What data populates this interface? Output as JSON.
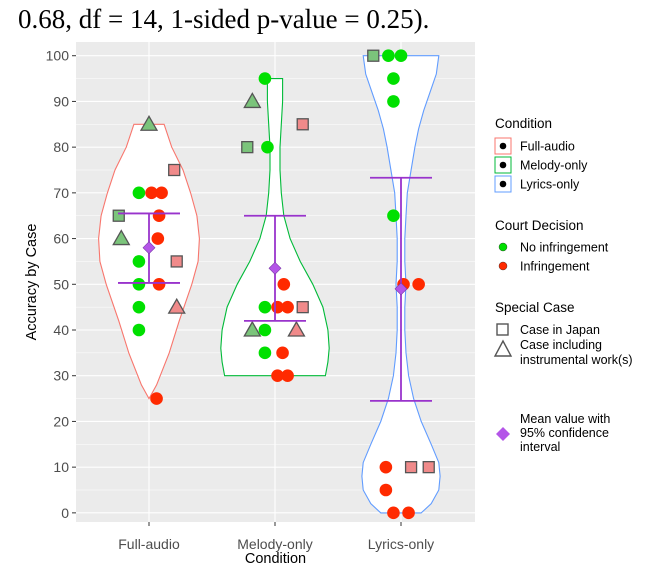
{
  "caption": "0.68, df = 14, 1-sided p-value = 0.25).",
  "colors": {
    "panel_bg": "#ebebeb",
    "grid": "#ffffff",
    "no_infringement": "#00e000",
    "infringement": "#ff2a00",
    "special_fill": "#f08a8a",
    "special_fill_green": "#7bc47b",
    "mean_marker": "#b455e8",
    "ci_line": "#9933cc",
    "violin_full_audio": "#f8766d",
    "violin_melody_only": "#00ba38",
    "violin_lyrics_only": "#619cff"
  },
  "chart_data": {
    "type": "violin",
    "xlabel": "Condition",
    "ylabel": "Accuracy by Case",
    "ylim": [
      -2,
      103
    ],
    "yticks": [
      0,
      10,
      20,
      30,
      40,
      50,
      60,
      70,
      80,
      90,
      100
    ],
    "categories": [
      "Full-audio",
      "Melody-only",
      "Lyrics-only"
    ],
    "grid": true,
    "legend_position": "right",
    "groups": [
      {
        "name": "Full-audio",
        "mean": 58,
        "ci": [
          50.3,
          65.5
        ],
        "points": [
          {
            "x": 0.0,
            "y": 85,
            "court": "no-infringement",
            "special": "instrumental"
          },
          {
            "x": 0.2,
            "y": 75,
            "court": "infringement",
            "special": "japan"
          },
          {
            "x": -0.24,
            "y": 65,
            "court": "no-infringement",
            "special": "japan"
          },
          {
            "x": -0.22,
            "y": 60,
            "court": "no-infringement",
            "special": "instrumental"
          },
          {
            "x": 0.22,
            "y": 45,
            "court": "infringement",
            "special": "instrumental"
          },
          {
            "x": 0.22,
            "y": 55,
            "court": "infringement",
            "special": "japan"
          },
          {
            "x": -0.08,
            "y": 70,
            "court": "no-infringement",
            "special": "none"
          },
          {
            "x": 0.02,
            "y": 70,
            "court": "infringement",
            "special": "none"
          },
          {
            "x": 0.1,
            "y": 70,
            "court": "infringement",
            "special": "none"
          },
          {
            "x": 0.08,
            "y": 65,
            "court": "infringement",
            "special": "none"
          },
          {
            "x": 0.07,
            "y": 60,
            "court": "infringement",
            "special": "none"
          },
          {
            "x": -0.08,
            "y": 55,
            "court": "no-infringement",
            "special": "none"
          },
          {
            "x": -0.08,
            "y": 50,
            "court": "no-infringement",
            "special": "none"
          },
          {
            "x": 0.08,
            "y": 50,
            "court": "infringement",
            "special": "none"
          },
          {
            "x": -0.08,
            "y": 45,
            "court": "no-infringement",
            "special": "none"
          },
          {
            "x": -0.08,
            "y": 40,
            "court": "no-infringement",
            "special": "none"
          },
          {
            "x": 0.06,
            "y": 25,
            "court": "infringement",
            "special": "none"
          }
        ]
      },
      {
        "name": "Melody-only",
        "mean": 53.5,
        "ci": [
          42,
          65
        ],
        "points": [
          {
            "x": -0.08,
            "y": 95,
            "court": "no-infringement",
            "special": "none"
          },
          {
            "x": -0.18,
            "y": 90,
            "court": "no-infringement",
            "special": "instrumental"
          },
          {
            "x": 0.22,
            "y": 85,
            "court": "infringement",
            "special": "japan"
          },
          {
            "x": -0.22,
            "y": 80,
            "court": "no-infringement",
            "special": "japan"
          },
          {
            "x": -0.06,
            "y": 80,
            "court": "no-infringement",
            "special": "none"
          },
          {
            "x": 0.07,
            "y": 50,
            "court": "infringement",
            "special": "none"
          },
          {
            "x": -0.08,
            "y": 45,
            "court": "no-infringement",
            "special": "none"
          },
          {
            "x": 0.02,
            "y": 45,
            "court": "infringement",
            "special": "none"
          },
          {
            "x": 0.1,
            "y": 45,
            "court": "infringement",
            "special": "none"
          },
          {
            "x": 0.22,
            "y": 45,
            "court": "infringement",
            "special": "japan"
          },
          {
            "x": -0.18,
            "y": 40,
            "court": "no-infringement",
            "special": "instrumental"
          },
          {
            "x": -0.08,
            "y": 40,
            "court": "no-infringement",
            "special": "none"
          },
          {
            "x": 0.17,
            "y": 40,
            "court": "infringement",
            "special": "instrumental"
          },
          {
            "x": -0.08,
            "y": 35,
            "court": "no-infringement",
            "special": "none"
          },
          {
            "x": 0.06,
            "y": 35,
            "court": "infringement",
            "special": "none"
          },
          {
            "x": 0.02,
            "y": 30,
            "court": "infringement",
            "special": "none"
          },
          {
            "x": 0.1,
            "y": 30,
            "court": "infringement",
            "special": "none"
          }
        ]
      },
      {
        "name": "Lyrics-only",
        "mean": 49,
        "ci": [
          24.5,
          73.3
        ],
        "points": [
          {
            "x": -0.22,
            "y": 100,
            "court": "no-infringement",
            "special": "japan"
          },
          {
            "x": -0.1,
            "y": 100,
            "court": "no-infringement",
            "special": "none"
          },
          {
            "x": 0.0,
            "y": 100,
            "court": "no-infringement",
            "special": "none"
          },
          {
            "x": -0.06,
            "y": 95,
            "court": "no-infringement",
            "special": "none"
          },
          {
            "x": -0.06,
            "y": 90,
            "court": "no-infringement",
            "special": "none"
          },
          {
            "x": -0.06,
            "y": 65,
            "court": "no-infringement",
            "special": "none"
          },
          {
            "x": 0.02,
            "y": 50,
            "court": "infringement",
            "special": "none"
          },
          {
            "x": 0.14,
            "y": 50,
            "court": "infringement",
            "special": "none"
          },
          {
            "x": 0.08,
            "y": 10,
            "court": "infringement",
            "special": "japan"
          },
          {
            "x": 0.22,
            "y": 10,
            "court": "infringement",
            "special": "japan"
          },
          {
            "x": -0.12,
            "y": 10,
            "court": "infringement",
            "special": "none"
          },
          {
            "x": -0.12,
            "y": 5,
            "court": "infringement",
            "special": "none"
          },
          {
            "x": -0.06,
            "y": 0,
            "court": "infringement",
            "special": "none"
          },
          {
            "x": 0.06,
            "y": 0,
            "court": "infringement",
            "special": "none"
          }
        ]
      }
    ],
    "violins": [
      {
        "name": "Full-audio",
        "profile": [
          [
            25,
            0.0
          ],
          [
            28,
            0.06
          ],
          [
            35,
            0.16
          ],
          [
            42,
            0.24
          ],
          [
            50,
            0.34
          ],
          [
            55,
            0.39
          ],
          [
            60,
            0.4
          ],
          [
            65,
            0.38
          ],
          [
            70,
            0.33
          ],
          [
            75,
            0.27
          ],
          [
            80,
            0.18
          ],
          [
            85,
            0.12
          ]
        ]
      },
      {
        "name": "Melody-only",
        "profile": [
          [
            30,
            0.4
          ],
          [
            33,
            0.42
          ],
          [
            36,
            0.43
          ],
          [
            40,
            0.42
          ],
          [
            45,
            0.38
          ],
          [
            50,
            0.3
          ],
          [
            55,
            0.2
          ],
          [
            60,
            0.12
          ],
          [
            65,
            0.07
          ],
          [
            70,
            0.05
          ],
          [
            75,
            0.04
          ],
          [
            80,
            0.04
          ],
          [
            85,
            0.05
          ],
          [
            90,
            0.06
          ],
          [
            95,
            0.06
          ]
        ]
      },
      {
        "name": "Lyrics-only",
        "profile": [
          [
            0,
            0.16
          ],
          [
            2,
            0.24
          ],
          [
            5,
            0.3
          ],
          [
            8,
            0.31
          ],
          [
            11,
            0.3
          ],
          [
            15,
            0.24
          ],
          [
            20,
            0.16
          ],
          [
            25,
            0.1
          ],
          [
            30,
            0.06
          ],
          [
            35,
            0.04
          ],
          [
            40,
            0.03
          ],
          [
            45,
            0.03
          ],
          [
            50,
            0.04
          ],
          [
            55,
            0.03
          ],
          [
            60,
            0.03
          ],
          [
            65,
            0.04
          ],
          [
            70,
            0.05
          ],
          [
            75,
            0.08
          ],
          [
            80,
            0.11
          ],
          [
            84,
            0.14
          ],
          [
            88,
            0.18
          ],
          [
            92,
            0.23
          ],
          [
            96,
            0.28
          ],
          [
            100,
            0.3
          ]
        ]
      }
    ],
    "legend": {
      "condition": {
        "title": "Condition",
        "items": [
          "Full-audio",
          "Melody-only",
          "Lyrics-only"
        ]
      },
      "court": {
        "title": "Court Decision",
        "items": [
          "No infringement",
          "Infringement"
        ]
      },
      "special": {
        "title": "Special Case",
        "items": [
          "Case in Japan",
          "Case including",
          "instrumental work(s)"
        ]
      },
      "mean": {
        "lines": [
          "Mean value with",
          "95% confidence",
          "interval"
        ]
      }
    }
  }
}
